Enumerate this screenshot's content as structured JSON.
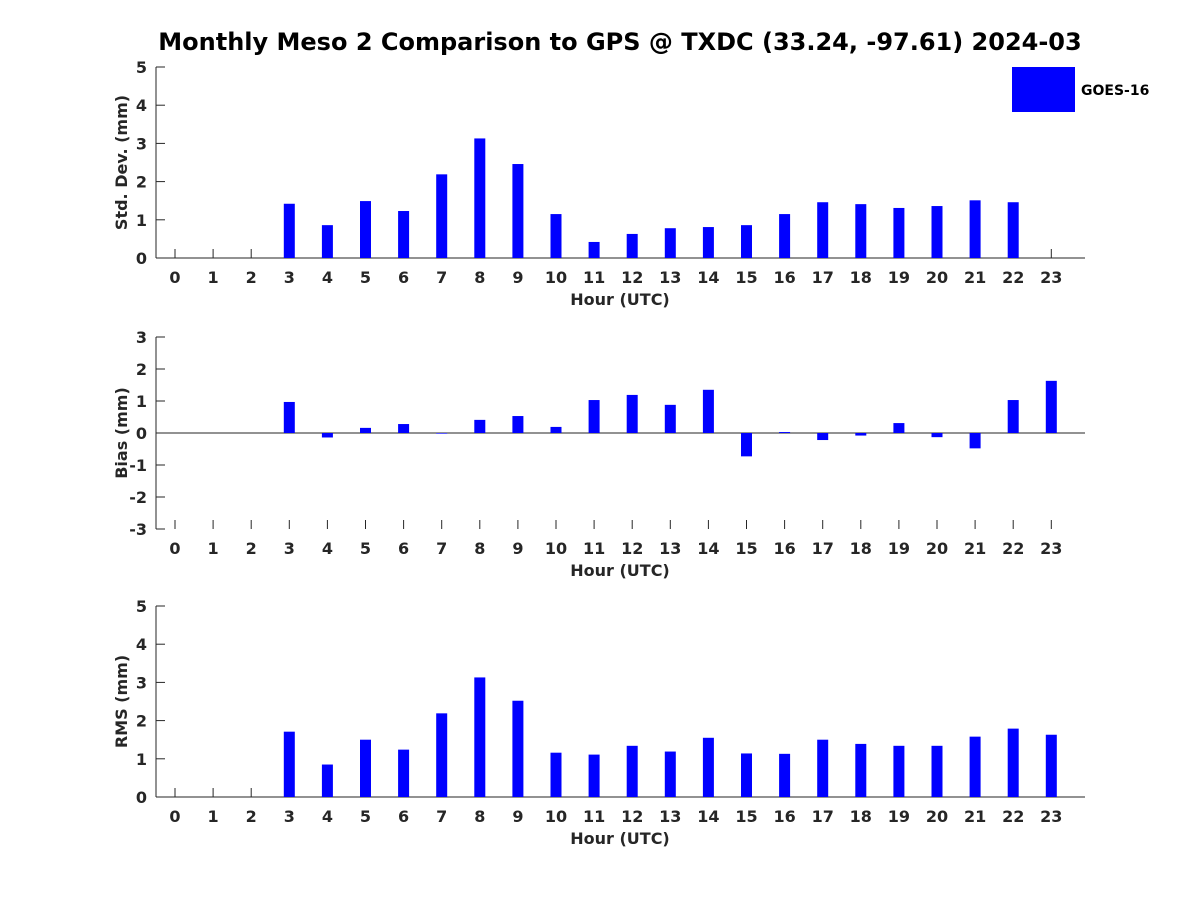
{
  "title": "Monthly Meso 2 Comparison to GPS @ TXDC (33.24, -97.61) 2024-03",
  "chart_data": [
    {
      "type": "bar",
      "name": "std-dev",
      "xlabel": "Hour (UTC)",
      "ylabel": "Std. Dev. (mm)",
      "ylim": [
        0,
        5
      ],
      "yticks": [
        0,
        1,
        2,
        3,
        4,
        5
      ],
      "categories": [
        0,
        1,
        2,
        3,
        4,
        5,
        6,
        7,
        8,
        9,
        10,
        11,
        12,
        13,
        14,
        15,
        16,
        17,
        18,
        19,
        20,
        21,
        22,
        23
      ],
      "series": [
        {
          "name": "GOES-16",
          "values": [
            null,
            null,
            null,
            1.42,
            0.86,
            1.49,
            1.23,
            2.19,
            3.13,
            2.46,
            1.15,
            0.42,
            0.63,
            0.78,
            0.81,
            0.86,
            1.15,
            1.46,
            1.41,
            1.31,
            1.36,
            1.51,
            1.46,
            null
          ]
        }
      ],
      "legend": {
        "label": "GOES-16",
        "position": "top-right"
      }
    },
    {
      "type": "bar",
      "name": "bias",
      "xlabel": "Hour (UTC)",
      "ylabel": "Bias (mm)",
      "ylim": [
        -3,
        3
      ],
      "yticks": [
        -3,
        -2,
        -1,
        0,
        1,
        2,
        3
      ],
      "categories": [
        0,
        1,
        2,
        3,
        4,
        5,
        6,
        7,
        8,
        9,
        10,
        11,
        12,
        13,
        14,
        15,
        16,
        17,
        18,
        19,
        20,
        21,
        22,
        23
      ],
      "series": [
        {
          "name": "GOES-16",
          "values": [
            null,
            null,
            null,
            0.97,
            -0.14,
            0.16,
            0.28,
            -0.02,
            0.41,
            0.53,
            0.19,
            1.03,
            1.19,
            0.88,
            1.35,
            -0.73,
            0.03,
            -0.22,
            -0.08,
            0.31,
            -0.13,
            -0.48,
            1.03,
            1.63
          ]
        }
      ]
    },
    {
      "type": "bar",
      "name": "rms",
      "xlabel": "Hour (UTC)",
      "ylabel": "RMS (mm)",
      "ylim": [
        0,
        5
      ],
      "yticks": [
        0,
        1,
        2,
        3,
        4,
        5
      ],
      "categories": [
        0,
        1,
        2,
        3,
        4,
        5,
        6,
        7,
        8,
        9,
        10,
        11,
        12,
        13,
        14,
        15,
        16,
        17,
        18,
        19,
        20,
        21,
        22,
        23
      ],
      "series": [
        {
          "name": "GOES-16",
          "values": [
            null,
            null,
            null,
            1.71,
            0.85,
            1.5,
            1.24,
            2.19,
            3.13,
            2.52,
            1.16,
            1.11,
            1.34,
            1.19,
            1.55,
            1.14,
            1.13,
            1.5,
            1.39,
            1.34,
            1.34,
            1.58,
            1.79,
            1.63
          ]
        }
      ]
    }
  ],
  "colors": {
    "bar": "#0000ff",
    "axis": "#262626",
    "text": "#262626"
  }
}
